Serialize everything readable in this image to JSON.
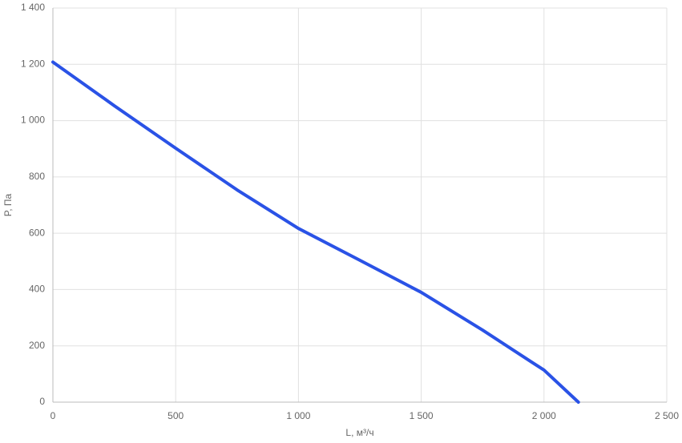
{
  "chart_data": {
    "type": "line",
    "x_label": "L, м³/ч",
    "y_label": "P, Па",
    "x": [
      0,
      250,
      500,
      750,
      1000,
      1250,
      1500,
      1750,
      1950,
      2000,
      2140
    ],
    "series": [
      {
        "name": "P",
        "color": "#2a52e6",
        "values": [
          1208,
          1053,
          902,
          754,
          617,
          504,
          390,
          256,
          142,
          114,
          0
        ]
      }
    ],
    "xlim": [
      0,
      2500
    ],
    "xticks": [
      0,
      500,
      {
        "value": 1000,
        "label": "1 000"
      },
      {
        "value": 1500,
        "label": "1 500"
      },
      {
        "value": 2000,
        "label": "2 000"
      },
      {
        "value": 2500,
        "label": "2 500"
      }
    ],
    "ylim": [
      0,
      1400
    ],
    "yticks": [
      0,
      200,
      400,
      600,
      800,
      {
        "value": 1000,
        "label": "1 000"
      },
      {
        "value": 1200,
        "label": "1 200"
      },
      {
        "value": 1400,
        "label": "1 400"
      }
    ],
    "grid": true
  }
}
